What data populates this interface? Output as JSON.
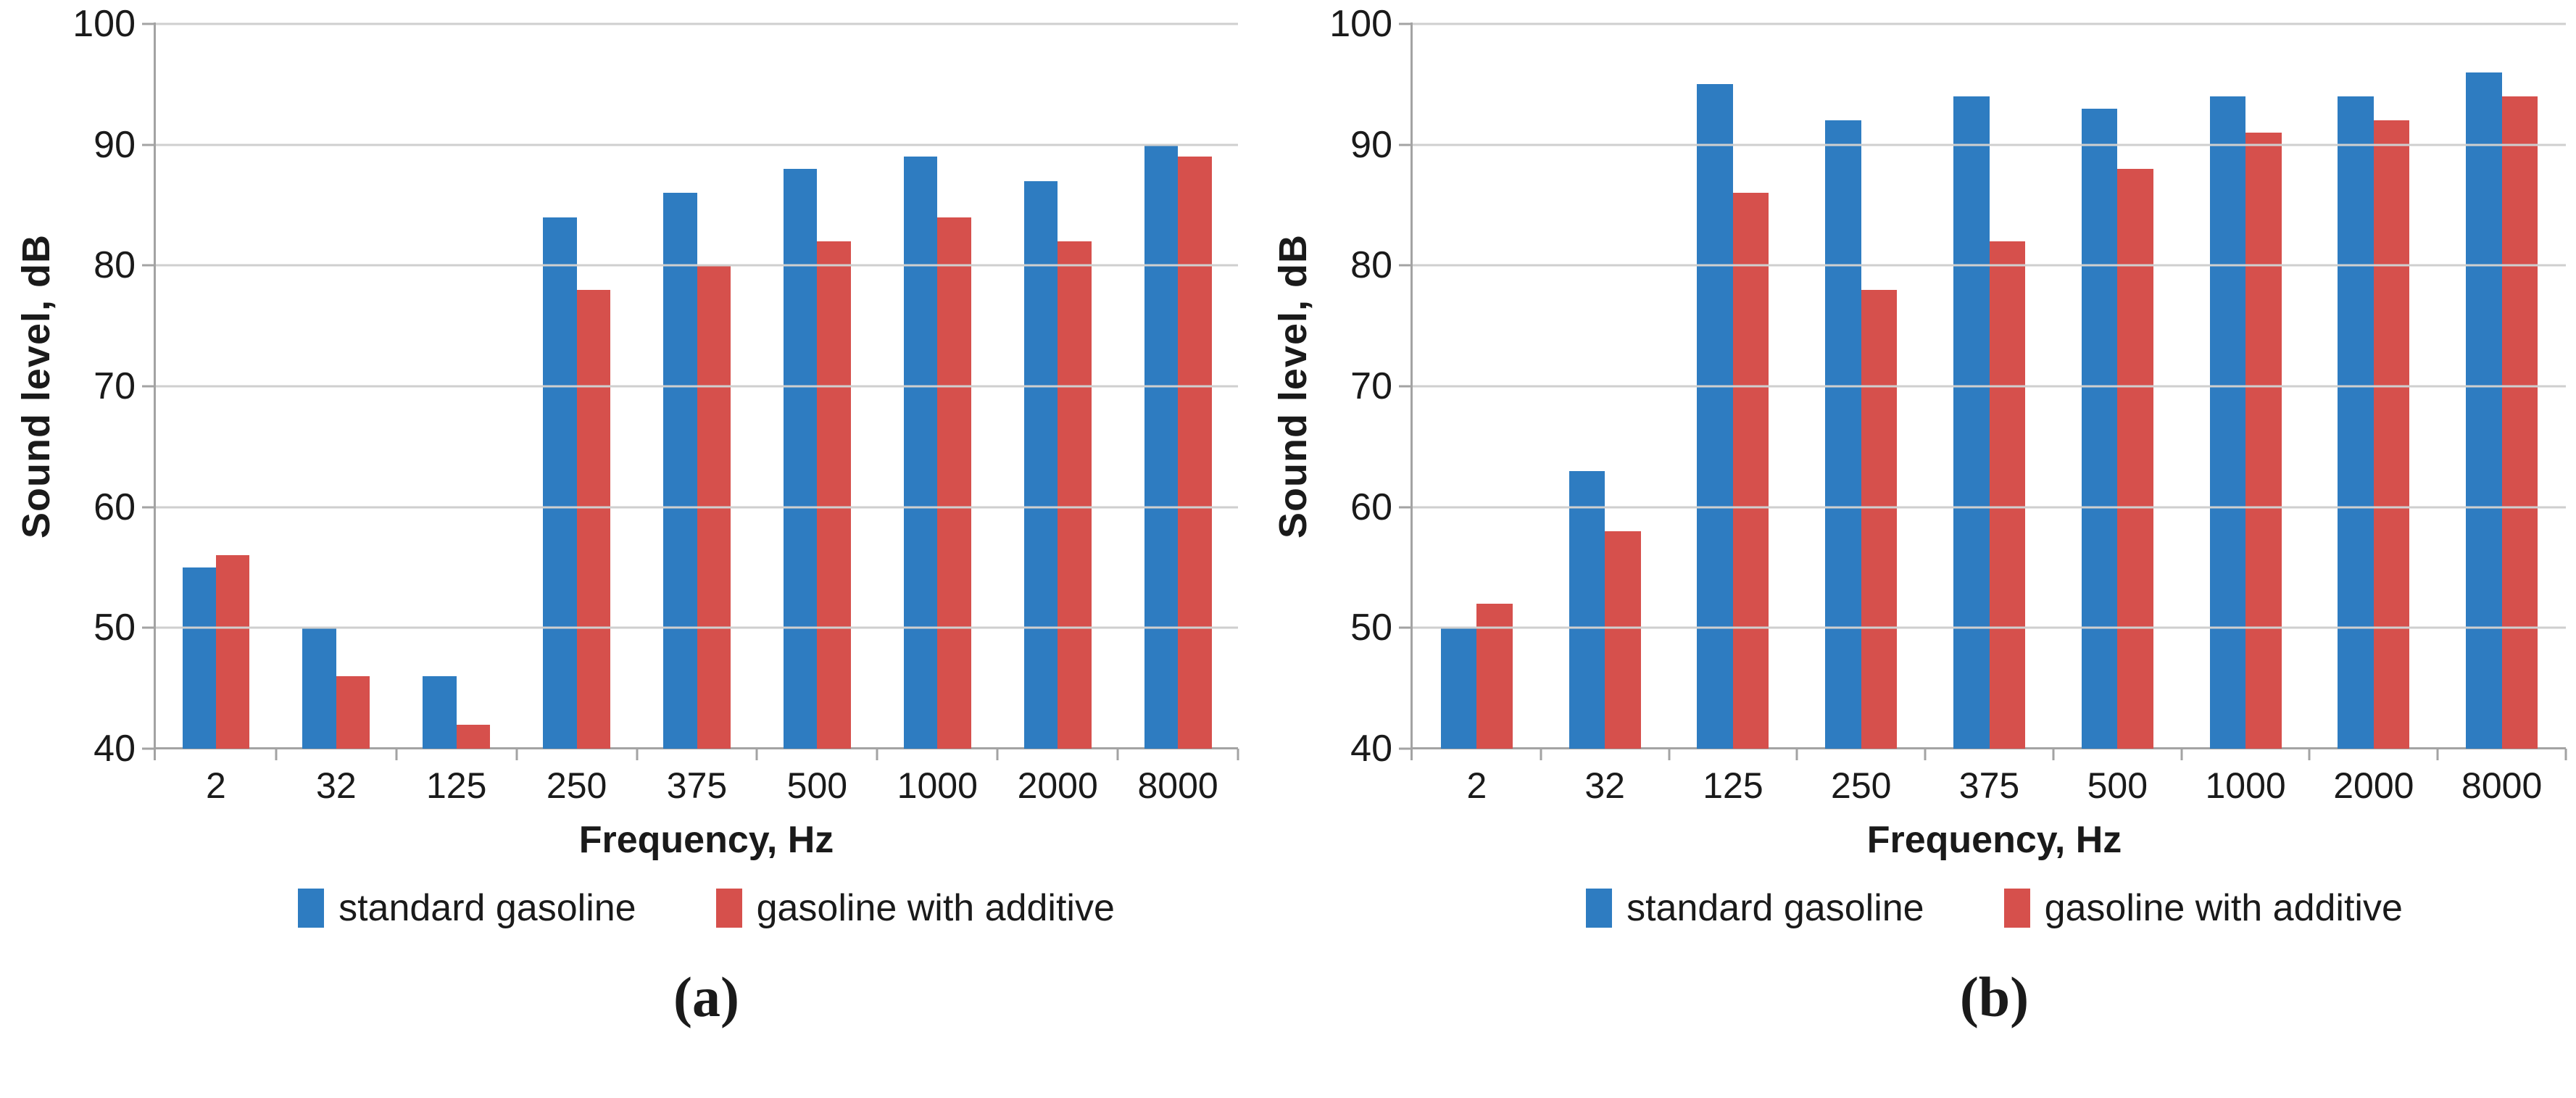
{
  "figure": {
    "background": "#ffffff",
    "grid_color": "#cfcfcf",
    "axis_color": "#a3a3a3",
    "series_colors": {
      "standard_gasoline": "#2e7cc1",
      "gasoline_with_additive": "#d6504c"
    }
  },
  "chart_data": [
    {
      "panel": "a",
      "caption": "(a)",
      "type": "bar",
      "title": "",
      "xlabel": "Frequency, Hz",
      "ylabel": "Sound level, dB",
      "ylim": [
        40,
        100
      ],
      "yticks": [
        100,
        90,
        80,
        70,
        60,
        50,
        40
      ],
      "grid": true,
      "legend_position": "bottom",
      "categories": [
        "2",
        "32",
        "125",
        "250",
        "375",
        "500",
        "1000",
        "2000",
        "8000"
      ],
      "series": [
        {
          "name": "standard gasoline",
          "color": "#2e7cc1",
          "values": [
            55,
            50,
            46,
            84,
            86,
            88,
            89,
            87,
            90
          ]
        },
        {
          "name": "gasoline with additive",
          "color": "#d6504c",
          "values": [
            56,
            46,
            42,
            78,
            80,
            82,
            84,
            82,
            89
          ]
        }
      ]
    },
    {
      "panel": "b",
      "caption": "(b)",
      "type": "bar",
      "title": "",
      "xlabel": "Frequency, Hz",
      "ylabel": "Sound level, dB",
      "ylim": [
        40,
        100
      ],
      "yticks": [
        100,
        90,
        80,
        70,
        60,
        50,
        40
      ],
      "grid": true,
      "legend_position": "bottom",
      "categories": [
        "2",
        "32",
        "125",
        "250",
        "375",
        "500",
        "1000",
        "2000",
        "8000"
      ],
      "series": [
        {
          "name": "standard gasoline",
          "color": "#2e7cc1",
          "values": [
            50,
            63,
            95,
            92,
            94,
            93,
            94,
            94,
            96
          ]
        },
        {
          "name": "gasoline with additive",
          "color": "#d6504c",
          "values": [
            52,
            58,
            86,
            78,
            82,
            88,
            91,
            92,
            94
          ]
        }
      ]
    }
  ]
}
